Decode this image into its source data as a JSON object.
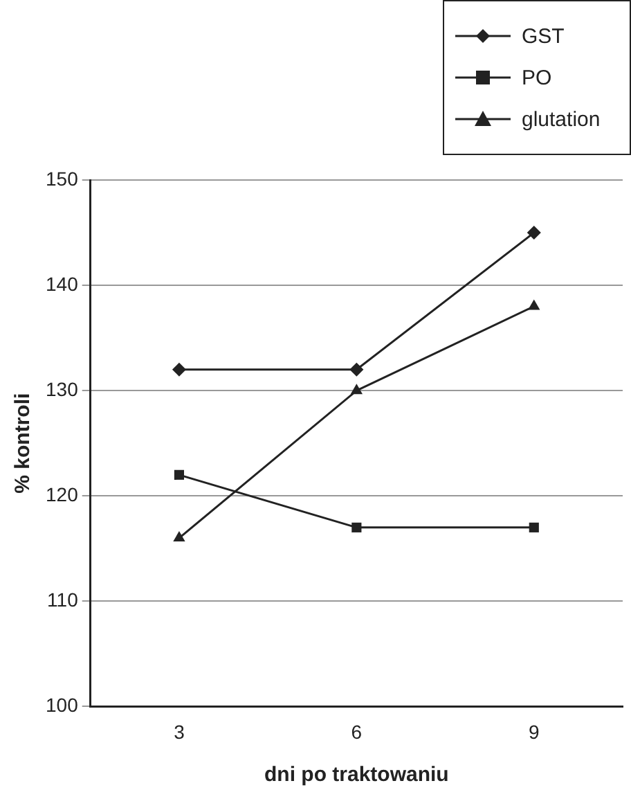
{
  "chart_data": {
    "type": "line",
    "xlabel": "dni po traktowaniu",
    "ylabel": "% kontroli",
    "categories": [
      "3",
      "6",
      "9"
    ],
    "series": [
      {
        "name": "GST",
        "color": "#222222",
        "marker": "diamond",
        "values": [
          132,
          132,
          145
        ]
      },
      {
        "name": "PO",
        "color": "#222222",
        "marker": "square",
        "values": [
          122,
          117,
          117
        ]
      },
      {
        "name": "glutation",
        "color": "#222222",
        "marker": "triangle",
        "values": [
          116,
          130,
          138
        ]
      }
    ],
    "ylim": [
      100,
      150
    ],
    "yticks": [
      100,
      110,
      120,
      130,
      140,
      150
    ],
    "grid": "y",
    "legend": "top right",
    "line_style": "solid"
  }
}
